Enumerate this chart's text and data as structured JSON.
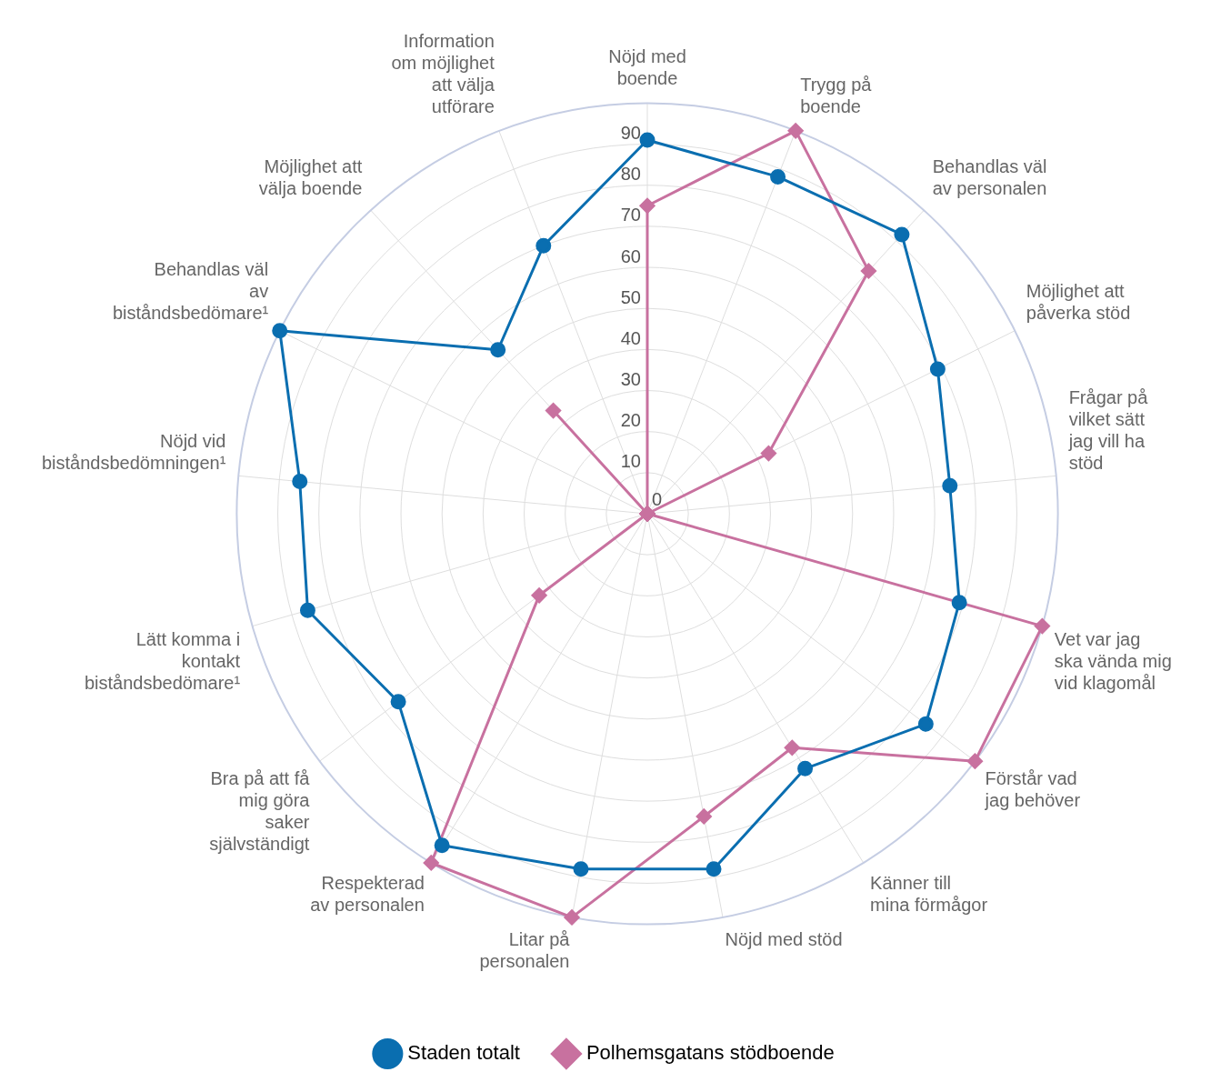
{
  "chart_data": {
    "type": "radar",
    "categories": [
      "Nöjd med boende",
      "Trygg på boende",
      "Behandlas väl av personalen",
      "Möjlighet att påverka stöd",
      "Frågar på vilket sätt jag vill ha stöd",
      "Vet var jag ska vända mig vid klagomål",
      "Förstår vad jag behöver",
      "Känner till mina förmågor",
      "Nöjd med stöd",
      "Litar på personalen",
      "Respekterad av personalen",
      "Bra på att få mig göra saker självständigt",
      "Lätt komma i kontakt biståndsbedömare¹",
      "Nöjd vid biståndsbedömningen¹",
      "Behandlas väl av biståndsbedömare¹",
      "Möjlighet att välja boende",
      "Information om möjlighet att välja utförare"
    ],
    "series": [
      {
        "name": "Staden totalt",
        "color": "#0a6eb0",
        "marker": "circle",
        "values": [
          91,
          88,
          92,
          79,
          74,
          79,
          85,
          73,
          88,
          88,
          95,
          76,
          86,
          85,
          100,
          54,
          70
        ]
      },
      {
        "name": "Polhemsgatans stödboende",
        "color": "#c8719f",
        "marker": "diamond",
        "values": [
          75,
          100,
          80,
          33,
          0,
          100,
          100,
          67,
          75,
          100,
          100,
          33,
          0,
          0,
          0,
          34,
          0
        ]
      }
    ],
    "ylim": [
      0,
      100
    ],
    "yticks": [
      0,
      10,
      20,
      30,
      40,
      50,
      60,
      70,
      80,
      90
    ],
    "grid": true,
    "legend": "bottom"
  }
}
